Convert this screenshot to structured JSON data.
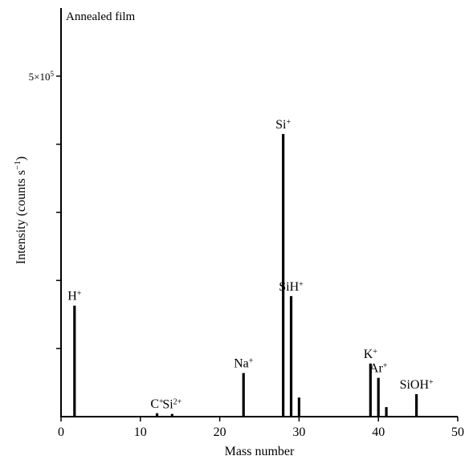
{
  "chart_data": {
    "type": "bar",
    "title": "Annealed film",
    "xlabel": "Mass number",
    "ylabel": "Intensity (counts s",
    "ylabel_sup": "−1",
    "ylabel_close": ")",
    "xlim": [
      0,
      50
    ],
    "ylim": [
      0,
      600000
    ],
    "x_ticks": [
      0,
      10,
      20,
      30,
      40,
      50
    ],
    "x_tick_labels": [
      "0",
      "10",
      "20",
      "30",
      "40",
      "50"
    ],
    "y_ticks": [
      100000,
      200000,
      300000,
      400000,
      500000
    ],
    "y_tick_label": {
      "value": 500000,
      "mantissa": "5×10",
      "exponent": "5"
    },
    "grid": false,
    "peaks": [
      {
        "x": 1.7,
        "y": 163000,
        "label": "H",
        "charge": "+"
      },
      {
        "x": 12.1,
        "y": 5000,
        "label": "C",
        "charge": "+"
      },
      {
        "x": 14.0,
        "y": 4000,
        "label": "Si",
        "charge": "2+"
      },
      {
        "x": 23.0,
        "y": 64000,
        "label": "Na",
        "charge": "+"
      },
      {
        "x": 28.0,
        "y": 415000,
        "label": "Si",
        "charge": "+"
      },
      {
        "x": 29.0,
        "y": 177000,
        "label": "SiH",
        "charge": "+"
      },
      {
        "x": 30.0,
        "y": 28000,
        "label": "",
        "charge": ""
      },
      {
        "x": 39.0,
        "y": 78000,
        "label": "K",
        "charge": "+"
      },
      {
        "x": 40.0,
        "y": 57000,
        "label": "Ar",
        "charge": "+"
      },
      {
        "x": 41.0,
        "y": 14000,
        "label": "",
        "charge": ""
      },
      {
        "x": 44.8,
        "y": 33000,
        "label": "SiOH",
        "charge": "+"
      }
    ]
  }
}
